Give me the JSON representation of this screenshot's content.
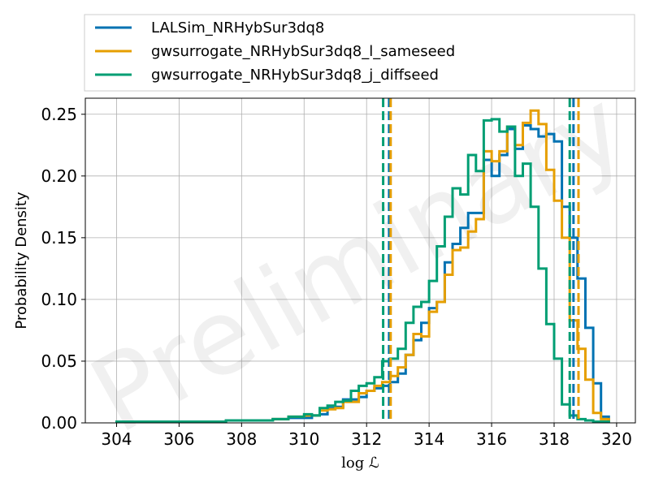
{
  "chart_data": {
    "type": "histogram",
    "xlabel": "log ℒ",
    "ylabel": "Probability Density",
    "xlim": [
      303,
      320.6
    ],
    "ylim": [
      0,
      0.263
    ],
    "xticks": [
      304,
      306,
      308,
      310,
      312,
      314,
      316,
      318,
      320
    ],
    "yticks": [
      0.0,
      0.05,
      0.1,
      0.15,
      0.2,
      0.25
    ],
    "grid": true,
    "legend_position": "top, above plot",
    "watermark": "Preliminary",
    "bin_width": 0.25,
    "series": [
      {
        "name": "LALSim_NRHybSur3dq8",
        "color": "#0072b2",
        "edges": [
          304.0,
          304.5,
          305.0,
          305.5,
          306.0,
          306.5,
          307.0,
          307.5,
          308.0,
          308.5,
          309.0,
          309.5,
          310.0,
          310.25,
          310.5,
          310.75,
          311.0,
          311.25,
          311.5,
          311.75,
          312.0,
          312.25,
          312.5,
          312.75,
          313.0,
          313.25,
          313.5,
          313.75,
          314.0,
          314.25,
          314.5,
          314.75,
          315.0,
          315.25,
          315.5,
          315.75,
          316.0,
          316.25,
          316.5,
          316.75,
          317.0,
          317.25,
          317.5,
          317.75,
          318.0,
          318.25,
          318.5,
          318.75,
          319.0,
          319.25,
          319.5,
          319.75
        ],
        "values": [
          0.001,
          0.001,
          0.001,
          0.001,
          0.001,
          0.001,
          0.001,
          0.002,
          0.002,
          0.002,
          0.003,
          0.004,
          0.004,
          0.006,
          0.007,
          0.012,
          0.013,
          0.019,
          0.019,
          0.021,
          0.026,
          0.028,
          0.03,
          0.033,
          0.04,
          0.055,
          0.067,
          0.081,
          0.093,
          0.098,
          0.13,
          0.145,
          0.158,
          0.17,
          0.17,
          0.213,
          0.2,
          0.217,
          0.238,
          0.222,
          0.241,
          0.238,
          0.232,
          0.234,
          0.228,
          0.175,
          0.15,
          0.117,
          0.077,
          0.032,
          0.005
        ]
      },
      {
        "name": "gwsurrogate_NRHybSur3dq8_l_sameseed",
        "color": "#e69f00",
        "edges": [
          304.0,
          304.5,
          305.0,
          305.5,
          306.0,
          306.5,
          307.0,
          307.5,
          308.0,
          308.5,
          309.0,
          309.5,
          310.0,
          310.25,
          310.5,
          310.75,
          311.0,
          311.25,
          311.5,
          311.75,
          312.0,
          312.25,
          312.5,
          312.75,
          313.0,
          313.25,
          313.5,
          313.75,
          314.0,
          314.25,
          314.5,
          314.75,
          315.0,
          315.25,
          315.5,
          315.75,
          316.0,
          316.25,
          316.5,
          316.75,
          317.0,
          317.25,
          317.5,
          317.75,
          318.0,
          318.25,
          318.5,
          318.75,
          319.0,
          319.25,
          319.5,
          319.75
        ],
        "values": [
          0.001,
          0.001,
          0.001,
          0.001,
          0.001,
          0.001,
          0.001,
          0.002,
          0.002,
          0.002,
          0.003,
          0.005,
          0.006,
          0.006,
          0.01,
          0.011,
          0.012,
          0.017,
          0.017,
          0.024,
          0.026,
          0.03,
          0.033,
          0.038,
          0.045,
          0.055,
          0.072,
          0.07,
          0.09,
          0.098,
          0.12,
          0.14,
          0.142,
          0.155,
          0.165,
          0.22,
          0.212,
          0.22,
          0.24,
          0.225,
          0.243,
          0.253,
          0.242,
          0.205,
          0.18,
          0.15,
          0.083,
          0.06,
          0.035,
          0.008,
          0.003
        ]
      },
      {
        "name": "gwsurrogate_NRHybSur3dq8_j_diffseed",
        "color": "#009e73",
        "edges": [
          304.0,
          304.5,
          305.0,
          305.5,
          306.0,
          306.5,
          307.0,
          307.5,
          308.0,
          308.5,
          309.0,
          309.5,
          310.0,
          310.25,
          310.5,
          310.75,
          311.0,
          311.25,
          311.5,
          311.75,
          312.0,
          312.25,
          312.5,
          312.75,
          313.0,
          313.25,
          313.5,
          313.75,
          314.0,
          314.25,
          314.5,
          314.75,
          315.0,
          315.25,
          315.5,
          315.75,
          316.0,
          316.25,
          316.5,
          316.75,
          317.0,
          317.25,
          317.5,
          317.75,
          318.0,
          318.25,
          318.5,
          318.75,
          319.0,
          319.25,
          319.5,
          319.75
        ],
        "values": [
          0.001,
          0.001,
          0.001,
          0.001,
          0.001,
          0.001,
          0.001,
          0.002,
          0.002,
          0.002,
          0.003,
          0.005,
          0.007,
          0.006,
          0.012,
          0.014,
          0.017,
          0.018,
          0.026,
          0.03,
          0.032,
          0.037,
          0.05,
          0.052,
          0.06,
          0.081,
          0.094,
          0.098,
          0.115,
          0.143,
          0.167,
          0.19,
          0.185,
          0.217,
          0.204,
          0.245,
          0.246,
          0.236,
          0.24,
          0.2,
          0.21,
          0.175,
          0.125,
          0.08,
          0.052,
          0.015,
          0.006,
          0.003,
          0.002,
          0.001,
          0.001
        ]
      }
    ],
    "vlines": [
      {
        "series": 0,
        "x": [
          312.72,
          318.62
        ]
      },
      {
        "series": 1,
        "x": [
          312.77,
          318.78
        ]
      },
      {
        "series": 2,
        "x": [
          312.53,
          318.5
        ]
      }
    ]
  }
}
